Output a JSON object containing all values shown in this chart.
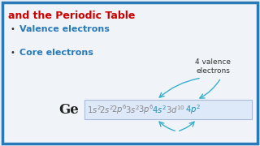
{
  "bg_color": "#e8eef5",
  "inner_bg": "#f0f4f8",
  "border_color": "#2979b8",
  "title_text": "and the Periodic Table",
  "title_color": "#cc0000",
  "bullet1_text": "Valence electrons",
  "bullet2_text": "Core electrons",
  "bullet_color": "#2979b8",
  "bullet_dot_color": "#333333",
  "ge_label": "Ge",
  "ge_color": "#222222",
  "formula_box_color": "#dde8f8",
  "formula_box_edge": "#aabbd8",
  "formula_gray": "#888888",
  "formula_blue": "#2090b8",
  "valence_label": "4 valence\nelectrons",
  "valence_color": "#333333",
  "arrow_color": "#38b0cc",
  "x_formula_parts": [
    107,
    122,
    137,
    154,
    170,
    187,
    204,
    228
  ],
  "formula_parts_text": [
    "$1s^2$",
    "$2s^2$",
    "$2p^6$",
    "$3s^2$",
    "$3p^6$",
    "$4s^2$",
    "$3d^{10}$",
    "$4p^2$"
  ],
  "formula_parts_color": [
    "#888888",
    "#888888",
    "#888888",
    "#888888",
    "#888888",
    "#2090b8",
    "#888888",
    "#2090b8"
  ]
}
